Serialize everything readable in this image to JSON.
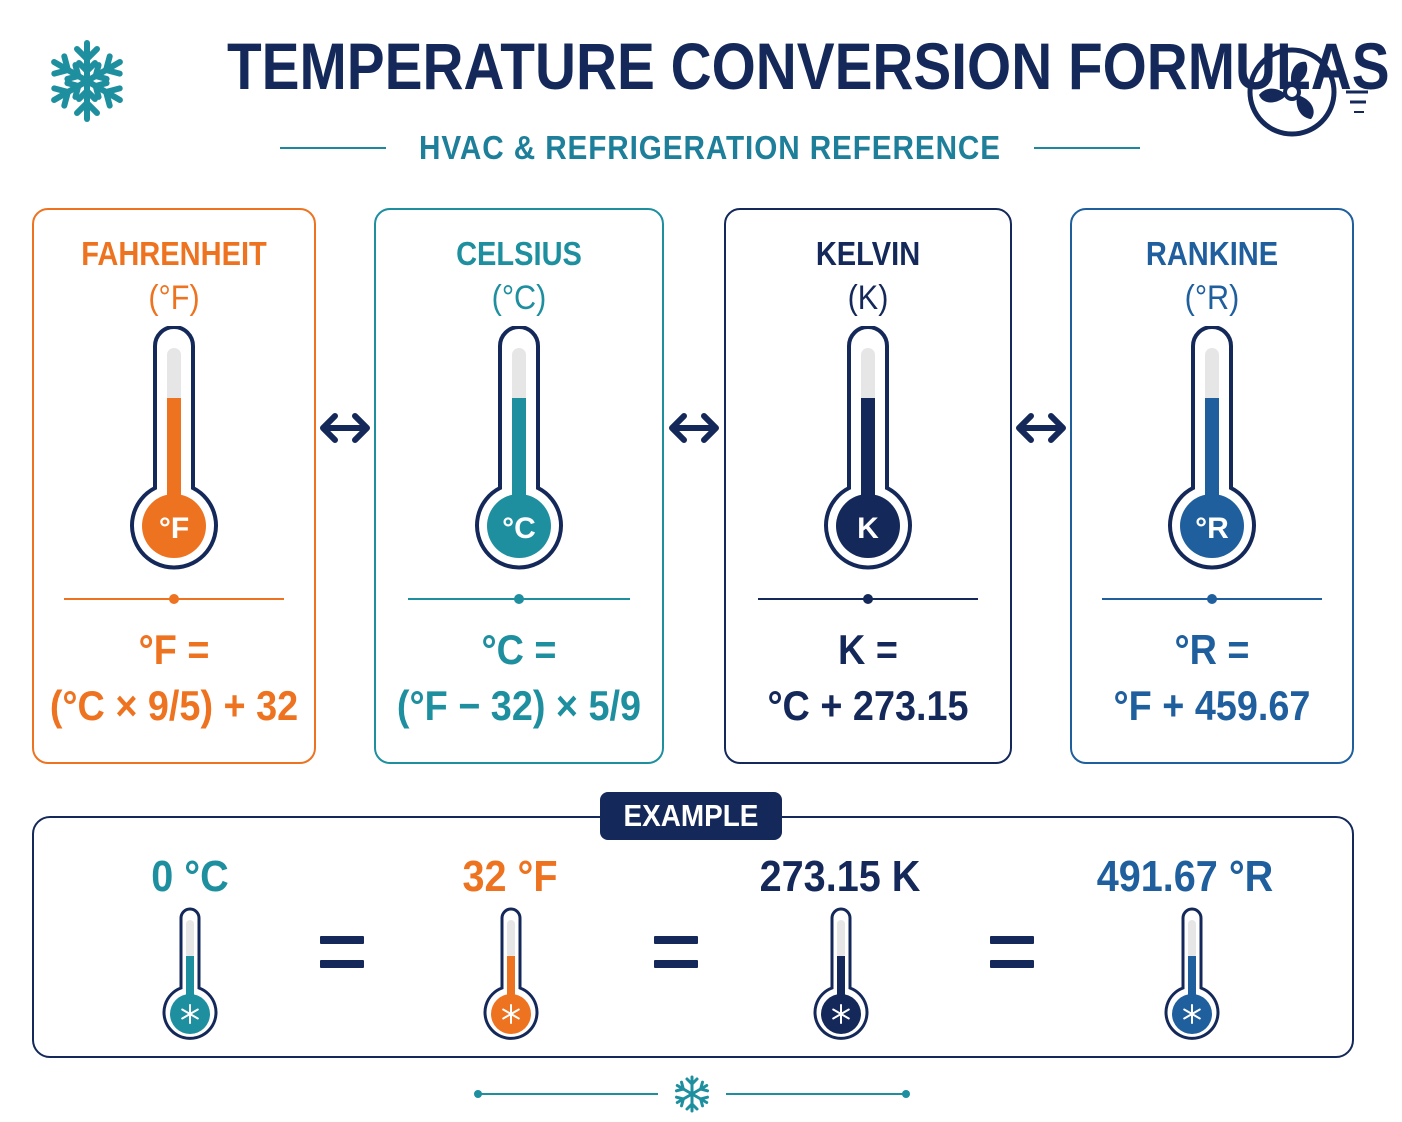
{
  "header": {
    "title": "TEMPERATURE CONVERSION FORMULAS",
    "subtitle": "HVAC & REFRIGERATION REFERENCE",
    "left_icon": "snowflake-icon",
    "right_icon": "fan-icon"
  },
  "colors": {
    "fahrenheit": "#ee7320",
    "celsius": "#1e8f9f",
    "kelvin": "#14295a",
    "rankine": "#1f5f9e",
    "navy": "#14295a"
  },
  "scales": [
    {
      "name": "FAHRENHEIT",
      "symbol": "(°F)",
      "bulb": "°F",
      "formula_1": "°F =",
      "formula_2": "(°C × 9/5) + 32"
    },
    {
      "name": "CELSIUS",
      "symbol": "(°C)",
      "bulb": "°C",
      "formula_1": "°C =",
      "formula_2": "(°F − 32) × 5/9"
    },
    {
      "name": "KELVIN",
      "symbol": "(K)",
      "bulb": "K",
      "formula_1": "K =",
      "formula_2": "°C + 273.15"
    },
    {
      "name": "RANKINE",
      "symbol": "(°R)",
      "bulb": "°R",
      "formula_1": "°R =",
      "formula_2": "°F + 459.67"
    }
  ],
  "example": {
    "label": "EXAMPLE",
    "values": [
      "0 °C",
      "32 °F",
      "273.15 K",
      "491.67 °R"
    ],
    "bulb_icon": "snowflake-icon"
  }
}
